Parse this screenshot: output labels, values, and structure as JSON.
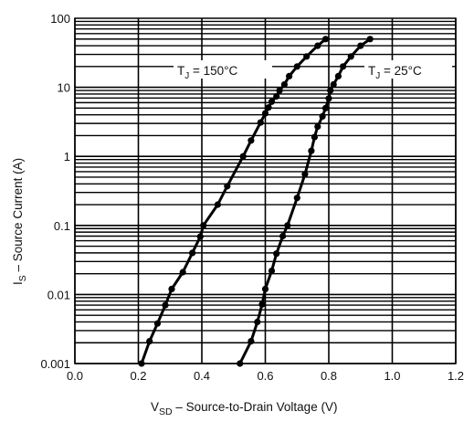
{
  "chart_data": {
    "type": "line",
    "xlabel": {
      "main": "V",
      "sub": "SD",
      "rest": " – Source-to-Drain Voltage (V)"
    },
    "ylabel": {
      "main": "I",
      "sub": "S",
      "rest": " – Source Current (A)"
    },
    "xlim": [
      0.0,
      1.2
    ],
    "ylim": [
      0.001,
      100
    ],
    "yscale": "log",
    "grid": true,
    "x_ticks": [
      "0.0",
      "0.2",
      "0.4",
      "0.6",
      "0.8",
      "1.0",
      "1.2"
    ],
    "y_ticks": [
      "0.001",
      "0.01",
      "0.1",
      "1",
      "10",
      "100"
    ],
    "series": [
      {
        "name": "TJ = 150°C",
        "label_main": "T",
        "label_sub": "J",
        "label_rest": " = 150°C",
        "points": [
          [
            0.21,
            0.001
          ],
          [
            0.235,
            0.0021
          ],
          [
            0.26,
            0.0038
          ],
          [
            0.285,
            0.007
          ],
          [
            0.305,
            0.012
          ],
          [
            0.34,
            0.021
          ],
          [
            0.37,
            0.04
          ],
          [
            0.395,
            0.069
          ],
          [
            0.405,
            0.1
          ],
          [
            0.45,
            0.2
          ],
          [
            0.48,
            0.37
          ],
          [
            0.53,
            1.0
          ],
          [
            0.555,
            1.7
          ],
          [
            0.585,
            3.1
          ],
          [
            0.6,
            4.2
          ],
          [
            0.61,
            5.1
          ],
          [
            0.62,
            6.2
          ],
          [
            0.635,
            7.4
          ],
          [
            0.645,
            9.0
          ],
          [
            0.66,
            11.0
          ],
          [
            0.675,
            14.5
          ],
          [
            0.7,
            20.0
          ],
          [
            0.73,
            28.0
          ],
          [
            0.765,
            40.0
          ],
          [
            0.79,
            50.0
          ]
        ]
      },
      {
        "name": "TJ = 25°C",
        "label_main": "T",
        "label_sub": "J",
        "label_rest": " = 25°C",
        "points": [
          [
            0.52,
            0.001
          ],
          [
            0.555,
            0.0021
          ],
          [
            0.575,
            0.004
          ],
          [
            0.59,
            0.0072
          ],
          [
            0.6,
            0.012
          ],
          [
            0.62,
            0.022
          ],
          [
            0.635,
            0.039
          ],
          [
            0.655,
            0.07
          ],
          [
            0.67,
            0.1
          ],
          [
            0.7,
            0.25
          ],
          [
            0.725,
            0.55
          ],
          [
            0.745,
            1.2
          ],
          [
            0.755,
            1.9
          ],
          [
            0.765,
            2.7
          ],
          [
            0.78,
            3.8
          ],
          [
            0.79,
            5.0
          ],
          [
            0.8,
            6.9
          ],
          [
            0.805,
            9.0
          ],
          [
            0.815,
            11.0
          ],
          [
            0.83,
            14.5
          ],
          [
            0.845,
            20.0
          ],
          [
            0.87,
            28.0
          ],
          [
            0.9,
            40.0
          ],
          [
            0.93,
            50.0
          ]
        ]
      }
    ],
    "line_color": "#000000",
    "grid_color": "#000000"
  }
}
